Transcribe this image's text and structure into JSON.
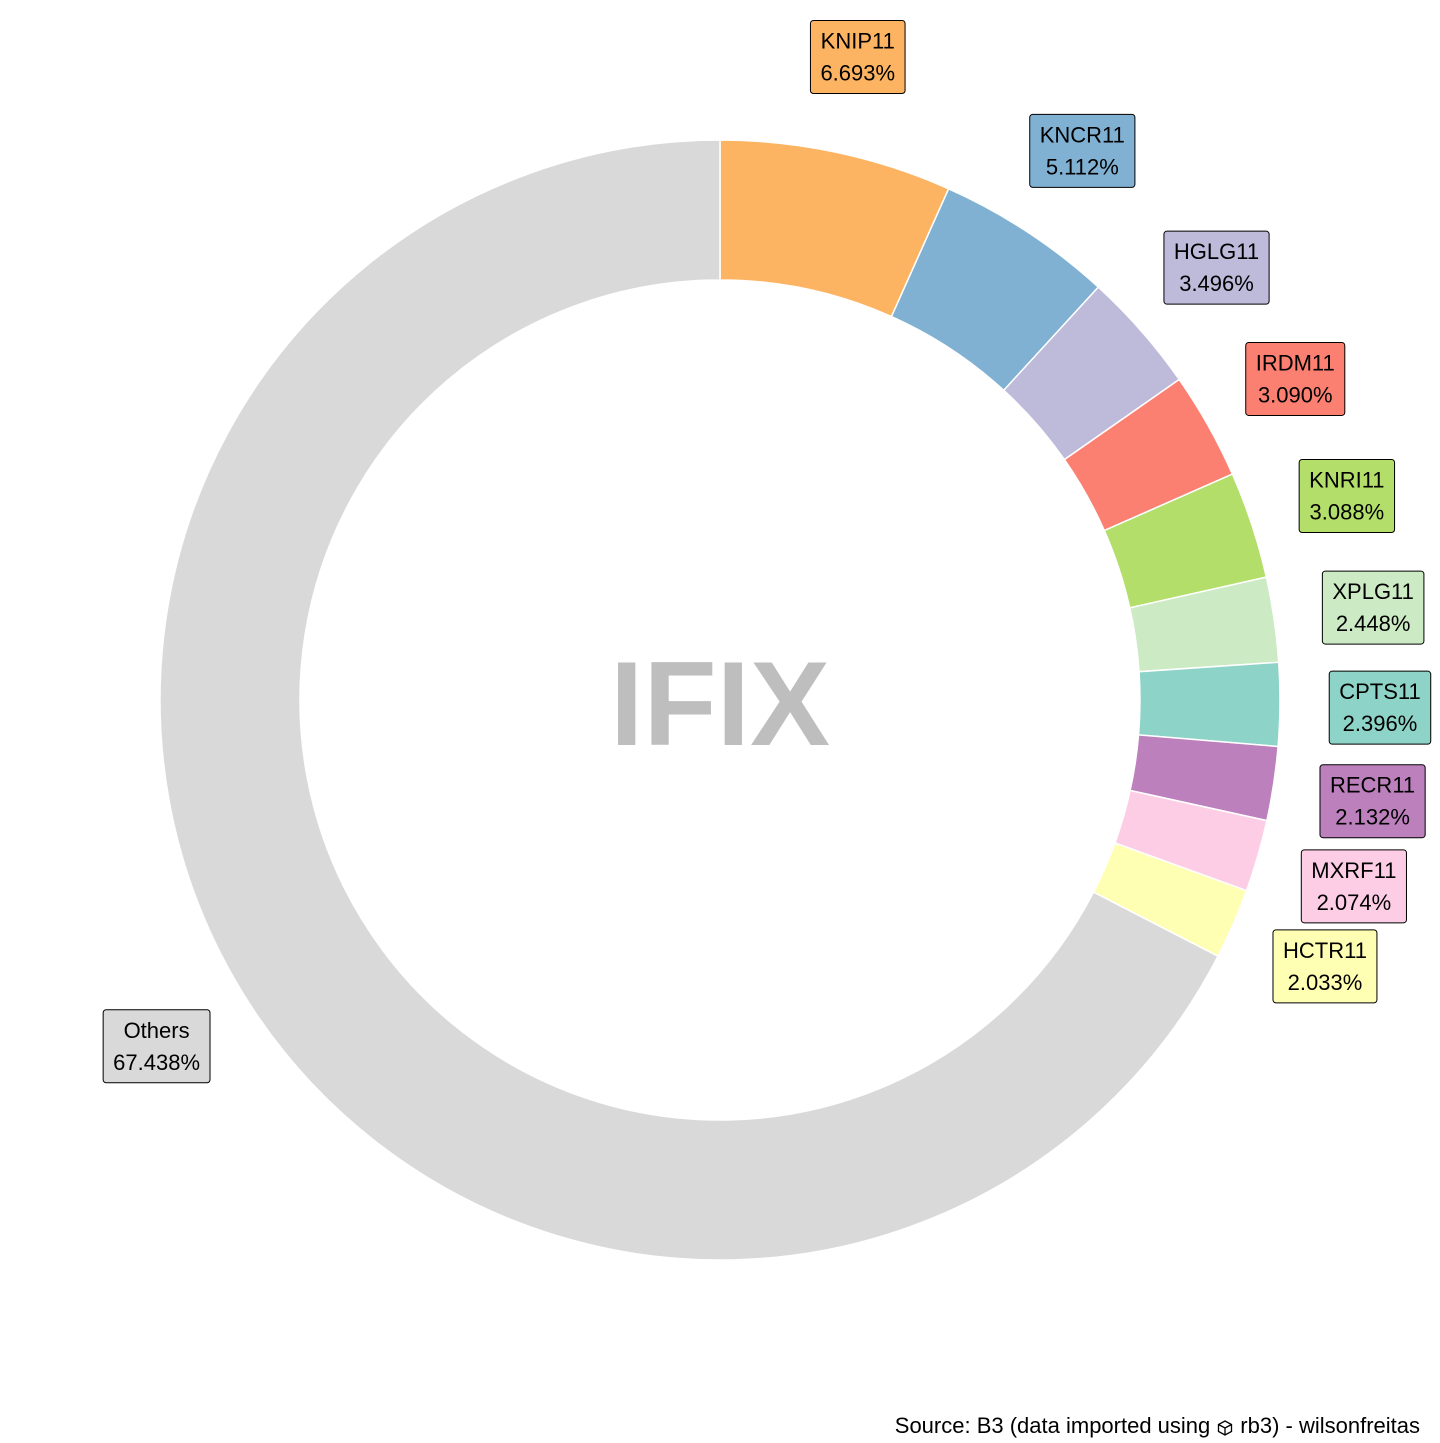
{
  "chart_data": {
    "type": "pie",
    "variant": "donut",
    "center_label": "IFIX",
    "slices": [
      {
        "label": "KNIP11",
        "value_label": "6.693%",
        "value": 6.693,
        "color": "#FDB462"
      },
      {
        "label": "KNCR11",
        "value_label": "5.112%",
        "value": 5.112,
        "color": "#80B1D3"
      },
      {
        "label": "HGLG11",
        "value_label": "3.496%",
        "value": 3.496,
        "color": "#BEBADA"
      },
      {
        "label": "IRDM11",
        "value_label": "3.090%",
        "value": 3.09,
        "color": "#FB8072"
      },
      {
        "label": "KNRI11",
        "value_label": "3.088%",
        "value": 3.088,
        "color": "#B3DE69"
      },
      {
        "label": "XPLG11",
        "value_label": "2.448%",
        "value": 2.448,
        "color": "#CCEBC5"
      },
      {
        "label": "CPTS11",
        "value_label": "2.396%",
        "value": 2.396,
        "color": "#8DD3C7"
      },
      {
        "label": "RECR11",
        "value_label": "2.132%",
        "value": 2.132,
        "color": "#BC80BD"
      },
      {
        "label": "MXRF11",
        "value_label": "2.074%",
        "value": 2.074,
        "color": "#FCCDE5"
      },
      {
        "label": "HCTR11",
        "value_label": "2.033%",
        "value": 2.033,
        "color": "#FFFFB3"
      },
      {
        "label": "Others",
        "value_label": "67.438%",
        "value": 67.438,
        "color": "#D9D9D9"
      }
    ]
  },
  "caption": {
    "prefix": "Source: B3 (data imported using",
    "icon": "package-icon",
    "suffix": "rb3) - wilsonfreitas"
  }
}
